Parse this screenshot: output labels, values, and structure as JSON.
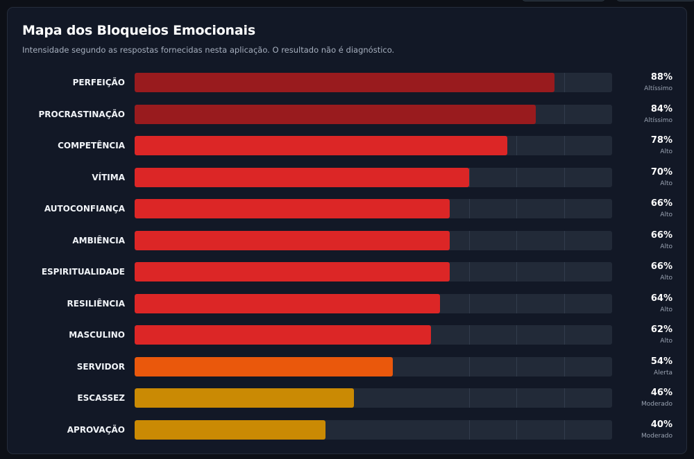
{
  "chart_data": {
    "type": "bar",
    "orientation": "horizontal",
    "title": "Mapa dos Bloqueios Emocionais",
    "subtitle": "Intensidade segundo as respostas fornecidas nesta aplicação. O resultado não é diagnóstico.",
    "xlim": [
      0,
      100
    ],
    "grid": true,
    "bars": [
      {
        "label": "PERFEIÇÃO",
        "value": 88,
        "value_label": "88%",
        "level": "Altíssimo",
        "color": "#991b1e"
      },
      {
        "label": "PROCRASTINAÇÃO",
        "value": 84,
        "value_label": "84%",
        "level": "Altíssimo",
        "color": "#991b1e"
      },
      {
        "label": "COMPETÊNCIA",
        "value": 78,
        "value_label": "78%",
        "level": "Alto",
        "color": "#dc2626"
      },
      {
        "label": "VÍTIMA",
        "value": 70,
        "value_label": "70%",
        "level": "Alto",
        "color": "#dc2626"
      },
      {
        "label": "AUTOCONFIANÇA",
        "value": 66,
        "value_label": "66%",
        "level": "Alto",
        "color": "#dc2626"
      },
      {
        "label": "AMBIÊNCIA",
        "value": 66,
        "value_label": "66%",
        "level": "Alto",
        "color": "#dc2626"
      },
      {
        "label": "ESPIRITUALIDADE",
        "value": 66,
        "value_label": "66%",
        "level": "Alto",
        "color": "#dc2626"
      },
      {
        "label": "RESILIÊNCIA",
        "value": 64,
        "value_label": "64%",
        "level": "Alto",
        "color": "#dc2626"
      },
      {
        "label": "MASCULINO",
        "value": 62,
        "value_label": "62%",
        "level": "Alto",
        "color": "#dc2626"
      },
      {
        "label": "SERVIDOR",
        "value": 54,
        "value_label": "54%",
        "level": "Alerta",
        "color": "#ea580c"
      },
      {
        "label": "ESCASSEZ",
        "value": 46,
        "value_label": "46%",
        "level": "Moderado",
        "color": "#ca8a04"
      },
      {
        "label": "APROVAÇÃO",
        "value": 40,
        "value_label": "40%",
        "level": "Moderado",
        "color": "#ca8a04"
      }
    ]
  }
}
